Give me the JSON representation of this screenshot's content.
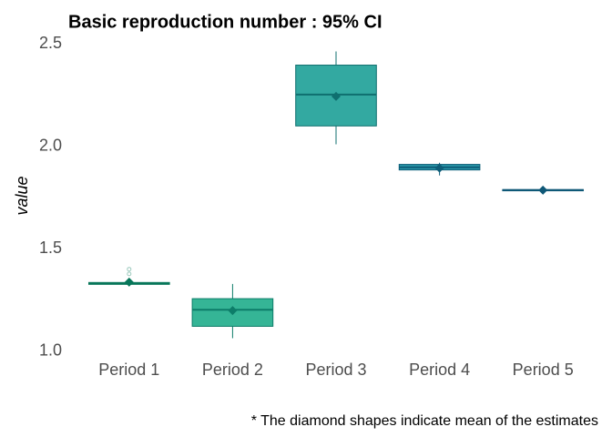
{
  "chart_data": {
    "type": "box",
    "title": "Basic reproduction number : 95% CI",
    "ylabel": "value",
    "note": "* The diamond shapes indicate mean of the estimates",
    "categories": [
      "Period 1",
      "Period 2",
      "Period 3",
      "Period 4",
      "Period 5"
    ],
    "boxes": [
      {
        "whislo": 1.325,
        "q1": 1.326,
        "med": 1.33,
        "q3": 1.335,
        "whishi": 1.337,
        "mean": 1.337,
        "outliers": [
          1.377,
          1.4
        ],
        "color": "#17936b",
        "edge": "#08775a"
      },
      {
        "whislo": 1.063,
        "q1": 1.121,
        "med": 1.202,
        "q3": 1.256,
        "whishi": 1.328,
        "mean": 1.198,
        "outliers": [],
        "color": "#35b596",
        "edge": "#0d7d69"
      },
      {
        "whislo": 2.01,
        "q1": 2.1,
        "med": 2.253,
        "q3": 2.397,
        "whishi": 2.464,
        "mean": 2.244,
        "outliers": [],
        "color": "#33a9a1",
        "edge": "#0f6f6f"
      },
      {
        "whislo": 1.858,
        "q1": 1.885,
        "med": 1.898,
        "q3": 1.912,
        "whishi": 1.92,
        "mean": 1.894,
        "outliers": [],
        "color": "#2b96a8",
        "edge": "#0d5d78"
      },
      {
        "whislo": 1.78,
        "q1": 1.783,
        "med": 1.786,
        "q3": 1.789,
        "whishi": 1.792,
        "mean": 1.786,
        "outliers": [],
        "color": "#1d6b8a",
        "edge": "#0f5877"
      }
    ],
    "ylim": [
      0.985,
      2.515
    ],
    "yticks": [
      {
        "value": 1.0,
        "label": "1.0"
      },
      {
        "value": 1.5,
        "label": "1.5"
      },
      {
        "value": 2.0,
        "label": "2.0"
      },
      {
        "value": 2.5,
        "label": "2.5"
      }
    ],
    "grid": false
  }
}
